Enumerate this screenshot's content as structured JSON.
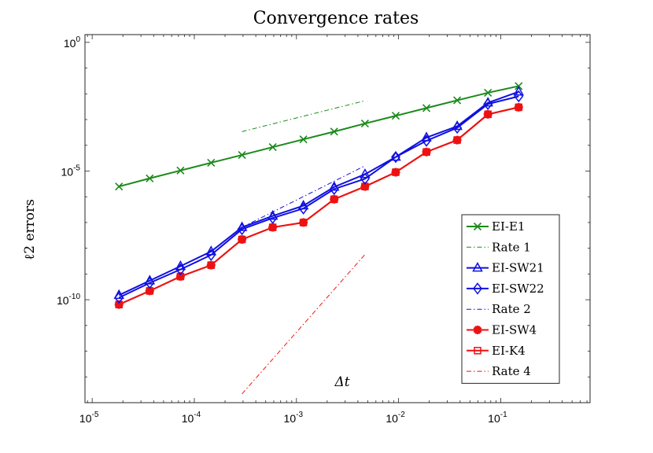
{
  "chart_data": {
    "type": "line",
    "title": "Convergence rates",
    "xlabel": "Δt",
    "ylabel": "ℓ2 errors",
    "x_scale": "log",
    "y_scale": "log",
    "xlim": [
      8.5e-06,
      0.75
    ],
    "ylim": [
      1e-14,
      2
    ],
    "x_ticks": [
      {
        "value": 1e-05,
        "base": "10",
        "exp": "-5"
      },
      {
        "value": 0.0001,
        "base": "10",
        "exp": "-4"
      },
      {
        "value": 0.001,
        "base": "10",
        "exp": "-3"
      },
      {
        "value": 0.01,
        "base": "10",
        "exp": "-2"
      },
      {
        "value": 0.1,
        "base": "10",
        "exp": "-1"
      }
    ],
    "y_ticks": [
      {
        "value": 1,
        "base": "10",
        "exp": "0"
      },
      {
        "value": 1e-05,
        "base": "10",
        "exp": "-5"
      },
      {
        "value": 1e-10,
        "base": "10",
        "exp": "-10"
      }
    ],
    "legend_position": "bottom-right",
    "grid": false,
    "series": [
      {
        "name": "EI-E1",
        "color": "#1a8a1a",
        "marker": "x",
        "style": "solid",
        "x": [
          1.83e-05,
          3.66e-05,
          7.32e-05,
          0.000146,
          0.000293,
          0.000586,
          0.00117,
          0.00234,
          0.00469,
          0.00938,
          0.01875,
          0.0375,
          0.075,
          0.15
        ],
        "y": [
          2.5e-06,
          5.2e-06,
          1.05e-05,
          2.1e-05,
          4.2e-05,
          8.5e-05,
          0.00017,
          0.00034,
          0.0007,
          0.0014,
          0.0028,
          0.0056,
          0.011,
          0.02
        ]
      },
      {
        "name": "Rate 1",
        "color": "#1a8a1a",
        "marker": "none",
        "style": "dashdot",
        "x": [
          0.000293,
          0.00469
        ],
        "y": [
          0.00034,
          0.0054
        ]
      },
      {
        "name": "EI-SW21",
        "color": "#1010e0",
        "marker": "triangle",
        "style": "solid",
        "x": [
          1.83e-05,
          3.66e-05,
          7.32e-05,
          0.000146,
          0.000293,
          0.000586,
          0.00117,
          0.00234,
          0.00469,
          0.00938,
          0.01875,
          0.0375,
          0.075,
          0.15
        ],
        "y": [
          1.5e-10,
          5.5e-10,
          2e-09,
          7.5e-09,
          6.5e-08,
          1.8e-07,
          4.5e-07,
          2.4e-06,
          7.5e-06,
          3.5e-05,
          0.0002,
          0.00055,
          0.0045,
          0.012
        ]
      },
      {
        "name": "EI-SW22",
        "color": "#1010e0",
        "marker": "diamond",
        "style": "solid",
        "x": [
          1.83e-05,
          3.66e-05,
          7.32e-05,
          0.000146,
          0.000293,
          0.000586,
          0.00117,
          0.00234,
          0.00469,
          0.00938,
          0.01875,
          0.0375,
          0.075,
          0.15
        ],
        "y": [
          1.2e-10,
          4.5e-10,
          1.5e-09,
          5.5e-09,
          5.5e-08,
          1.5e-07,
          3.5e-07,
          2e-06,
          5e-06,
          3.5e-05,
          0.00015,
          0.00048,
          0.004,
          0.008
        ]
      },
      {
        "name": "Rate 2",
        "color": "#1010e0",
        "marker": "none",
        "style": "dashdot",
        "x": [
          0.000293,
          0.00469
        ],
        "y": [
          6.5e-08,
          1.6e-05
        ]
      },
      {
        "name": "EI-SW4",
        "color": "#ee1111",
        "marker": "star",
        "style": "solid",
        "x": [
          1.83e-05,
          3.66e-05,
          7.32e-05,
          0.000146,
          0.000293,
          0.000586,
          0.00117,
          0.00234,
          0.00469,
          0.00938,
          0.01875,
          0.0375,
          0.075,
          0.15
        ],
        "y": [
          6.5e-11,
          2.2e-10,
          8e-10,
          2.2e-09,
          2.2e-08,
          6.5e-08,
          1e-07,
          8e-07,
          2.5e-06,
          9e-06,
          5.5e-05,
          0.00016,
          0.0016,
          0.003
        ]
      },
      {
        "name": "EI-K4",
        "color": "#ee1111",
        "marker": "square",
        "style": "solid",
        "x": [
          1.83e-05,
          3.66e-05,
          7.32e-05,
          0.000146,
          0.000293,
          0.000586,
          0.00117,
          0.00234,
          0.00469,
          0.00938,
          0.01875,
          0.0375,
          0.075,
          0.15
        ],
        "y": [
          6.5e-11,
          2.2e-10,
          8e-10,
          2.2e-09,
          2.2e-08,
          6.5e-08,
          1e-07,
          8e-07,
          2.5e-06,
          9e-06,
          5.5e-05,
          0.00016,
          0.0016,
          0.003
        ]
      },
      {
        "name": "Rate 4",
        "color": "#ee1111",
        "marker": "none",
        "style": "dashdot",
        "x": [
          0.000293,
          0.00469
        ],
        "y": [
          2.2e-14,
          5.7e-09
        ]
      }
    ]
  }
}
